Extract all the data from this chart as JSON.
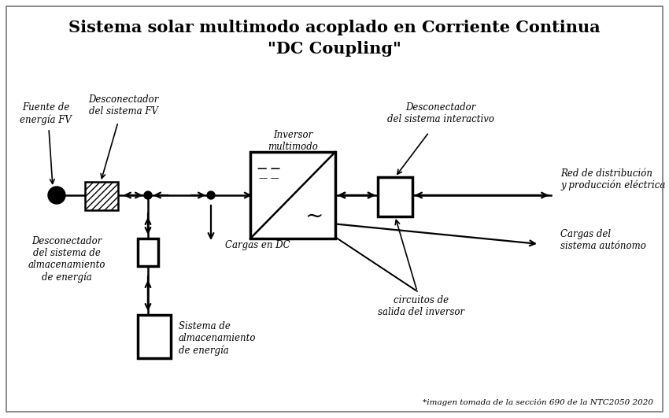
{
  "title_line1": "Sistema solar multimodo acoplado en Corriente Continua",
  "title_line2": "\"DC Coupling\"",
  "footnote": "*imagen tomada de la sección 690 de la NTC2050 2020",
  "bg_color": "#ffffff",
  "line_color": "#000000",
  "labels": {
    "fuente": "Fuente de\nenergía FV",
    "desconectador_fv": "Desconectador\ndel sistema FV",
    "inversor": "Inversor\nmultimodo",
    "desconectador_interactivo": "Desconectador\ndel sistema interactivo",
    "red": "Red de distribución\ny producción eléctrica",
    "cargas_autonomo": "Cargas del\nsistema autónomo",
    "desconectador_almacenamiento": "Desconectador\ndel sistema de\nalmacenamiento\nde energía",
    "cargas_dc": "Cargas en DC",
    "circuitos": "circuitos de\nsalida del inversor",
    "sistema_almacenamiento": "Sistema de\nalmacenamiento\nde energía"
  }
}
